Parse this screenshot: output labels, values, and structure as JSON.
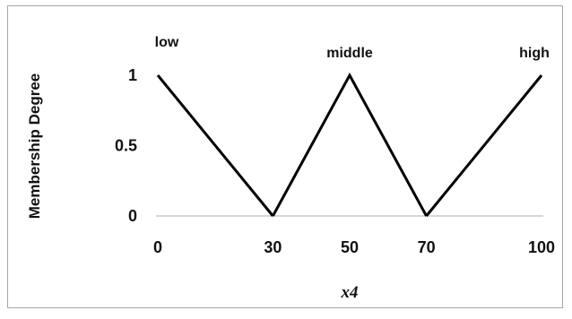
{
  "chart_data": {
    "type": "line",
    "xlabel": "x4",
    "ylabel": "Membership Degree",
    "xlim": [
      0,
      100
    ],
    "ylim": [
      0,
      1
    ],
    "x_ticks": [
      "0",
      "30",
      "50",
      "70",
      "100"
    ],
    "x_tick_values": [
      0,
      30,
      50,
      70,
      100
    ],
    "y_ticks": [
      "0",
      "0.5",
      "1"
    ],
    "y_tick_values": [
      0,
      0.5,
      1
    ],
    "grid": false,
    "colors": {
      "line": "#000000",
      "axis": "#bfbfbf",
      "frame": "#a6a6a6"
    },
    "series": [
      {
        "name": "low",
        "x": [
          0,
          30
        ],
        "y": [
          1,
          0
        ]
      },
      {
        "name": "middle",
        "x": [
          30,
          50,
          70
        ],
        "y": [
          0,
          1,
          0
        ]
      },
      {
        "name": "high",
        "x": [
          70,
          100
        ],
        "y": [
          0,
          1
        ]
      }
    ]
  }
}
